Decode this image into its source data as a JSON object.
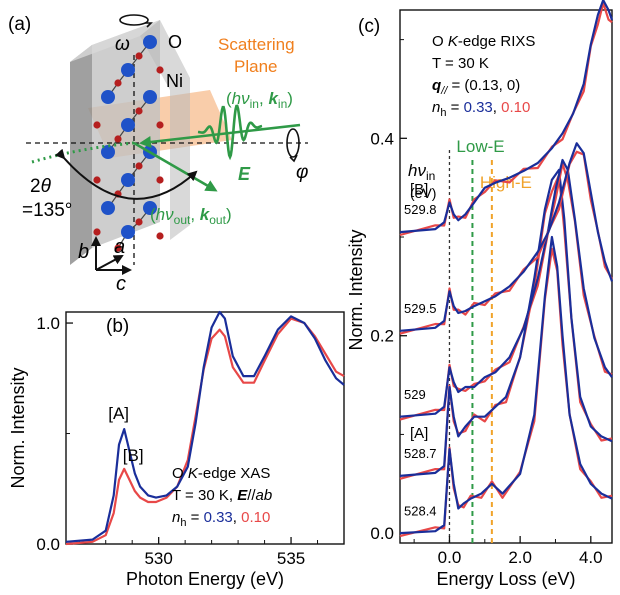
{
  "panel_a": {
    "label": "(a)",
    "omega": "ω",
    "o_label": "O",
    "ni_label": "Ni",
    "plane_line1": "Scattering",
    "plane_line2": "Plane",
    "kin_label": "(hν_in, k_in)",
    "e_label": "E",
    "phi": "φ",
    "two_theta": "2θ",
    "angle": "=135°",
    "kout_label": "(hν_out, k_out)",
    "axis_a": "a",
    "axis_b": "b",
    "axis_c": "c",
    "colors": {
      "plane": "#f4a465",
      "beam": "#2f9a47",
      "ni": "#1f52c8",
      "o": "#b51f1f",
      "text_orange": "#f07f1d"
    }
  },
  "chart_data": [
    {
      "type": "line",
      "panel": "(b)",
      "xlabel": "Photon Energy (eV)",
      "ylabel": "Norm. Intensity",
      "xlim": [
        526.5,
        537
      ],
      "ylim": [
        0,
        1.05
      ],
      "x_ticks": [
        "530",
        "535"
      ],
      "y_ticks": [
        "0.0",
        "1.0"
      ],
      "x_tick_values": [
        530,
        535
      ],
      "y_tick_values": [
        0,
        1
      ],
      "annotations": [
        "[A]",
        "[B]"
      ],
      "legend": [
        "O K-edge XAS",
        "T = 30 K, E//ab",
        "n_h = 0.33, 0.10"
      ],
      "legend_placement": "bottom-right",
      "series": [
        {
          "name": "0.33",
          "color": "#1a2e9a",
          "x": [
            526.5,
            527.5,
            528.0,
            528.3,
            528.5,
            528.7,
            528.9,
            529.1,
            529.3,
            529.6,
            529.9,
            530.3,
            530.7,
            531.1,
            531.4,
            531.7,
            532.0,
            532.3,
            532.5,
            532.8,
            533.2,
            533.6,
            534.0,
            534.5,
            535.0,
            535.5,
            535.9,
            536.3,
            536.7,
            537.0
          ],
          "y": [
            0.01,
            0.02,
            0.06,
            0.22,
            0.45,
            0.52,
            0.42,
            0.32,
            0.26,
            0.22,
            0.21,
            0.22,
            0.26,
            0.35,
            0.55,
            0.8,
            0.98,
            1.05,
            1.02,
            0.85,
            0.76,
            0.76,
            0.85,
            0.97,
            1.03,
            1.0,
            0.93,
            0.83,
            0.75,
            0.72
          ]
        },
        {
          "name": "0.10",
          "color": "#e84848",
          "x": [
            526.5,
            527.5,
            528.0,
            528.3,
            528.5,
            528.7,
            528.9,
            529.1,
            529.3,
            529.6,
            529.9,
            530.3,
            530.7,
            531.1,
            531.4,
            531.7,
            532.0,
            532.3,
            532.5,
            532.8,
            533.2,
            533.6,
            534.0,
            534.5,
            535.0,
            535.5,
            535.9,
            536.3,
            536.7,
            537.0
          ],
          "y": [
            0.0,
            0.01,
            0.04,
            0.14,
            0.29,
            0.34,
            0.29,
            0.24,
            0.21,
            0.19,
            0.19,
            0.21,
            0.26,
            0.38,
            0.58,
            0.79,
            0.93,
            0.97,
            0.94,
            0.8,
            0.73,
            0.73,
            0.83,
            0.95,
            1.02,
            1.0,
            0.94,
            0.86,
            0.78,
            0.76
          ]
        }
      ]
    },
    {
      "type": "line",
      "panel": "(c)",
      "xlabel": "Energy Loss (eV)",
      "ylabel": "Norm. Intensity",
      "xlim": [
        -1.4,
        4.6
      ],
      "ylim": [
        -0.01,
        0.53
      ],
      "x_ticks": [
        "0.0",
        "2.0",
        "4.0"
      ],
      "y_ticks": [
        "0.0",
        "0.2",
        "0.4"
      ],
      "x_tick_values": [
        0,
        2,
        4
      ],
      "y_tick_values": [
        0,
        0.2,
        0.4
      ],
      "legend": [
        "O K-edge RIXS",
        "T = 30 K",
        "q// = (0.13, 0)",
        "n_h = 0.33, 0.10"
      ],
      "legend_placement": "top-left",
      "incident_label": "hν_in",
      "incident_unit": "(eV)",
      "markers": [
        {
          "label": "Low-E",
          "x": 0.65,
          "color": "#2f9a47"
        },
        {
          "label": "High-E",
          "x": 1.2,
          "color": "#f0a32a"
        },
        {
          "label": "",
          "x": 0.0,
          "color": "#333333"
        }
      ],
      "spectra": [
        {
          "energy": "528.4",
          "tag": "",
          "offset": 0.0,
          "x": [
            -1.4,
            -0.4,
            -0.15,
            0.0,
            0.12,
            0.25,
            0.4,
            0.6,
            0.9,
            1.2,
            1.5,
            2.0,
            2.4,
            2.7,
            2.9,
            3.05,
            3.2,
            3.4,
            3.7,
            4.0,
            4.3,
            4.6
          ],
          "y": [
            0.0,
            0.002,
            0.008,
            0.085,
            0.05,
            0.025,
            0.03,
            0.035,
            0.04,
            0.05,
            0.04,
            0.06,
            0.12,
            0.24,
            0.3,
            0.27,
            0.2,
            0.12,
            0.07,
            0.05,
            0.04,
            0.035
          ]
        },
        {
          "energy": "528.7",
          "tag": "[A]",
          "offset": 0.058,
          "x": [
            -1.4,
            -0.4,
            -0.15,
            0.0,
            0.12,
            0.25,
            0.45,
            0.7,
            1.0,
            1.3,
            1.6,
            2.0,
            2.4,
            2.7,
            2.9,
            3.1,
            3.25,
            3.45,
            3.7,
            4.0,
            4.3,
            4.6
          ],
          "y": [
            0.0,
            0.003,
            0.01,
            0.09,
            0.06,
            0.04,
            0.05,
            0.06,
            0.06,
            0.07,
            0.08,
            0.12,
            0.2,
            0.27,
            0.3,
            0.31,
            0.26,
            0.16,
            0.08,
            0.05,
            0.04,
            0.035
          ]
        },
        {
          "energy": "529",
          "tag": "",
          "offset": 0.118,
          "x": [
            -1.4,
            -0.4,
            -0.15,
            0.0,
            0.12,
            0.25,
            0.45,
            0.7,
            1.0,
            1.3,
            1.7,
            2.1,
            2.5,
            2.8,
            3.0,
            3.2,
            3.35,
            3.55,
            3.8,
            4.1,
            4.4,
            4.6
          ],
          "y": [
            0.0,
            0.003,
            0.01,
            0.05,
            0.035,
            0.025,
            0.03,
            0.03,
            0.04,
            0.045,
            0.06,
            0.09,
            0.14,
            0.19,
            0.23,
            0.26,
            0.25,
            0.2,
            0.13,
            0.08,
            0.05,
            0.04
          ]
        },
        {
          "energy": "529.5",
          "tag": "",
          "offset": 0.205,
          "x": [
            -1.4,
            -0.4,
            -0.15,
            0.0,
            0.12,
            0.25,
            0.45,
            0.7,
            1.0,
            1.3,
            1.7,
            2.1,
            2.5,
            2.8,
            3.1,
            3.4,
            3.6,
            3.8,
            4.0,
            4.2,
            4.4,
            4.6
          ],
          "y": [
            0.0,
            0.003,
            0.01,
            0.04,
            0.025,
            0.018,
            0.02,
            0.025,
            0.03,
            0.035,
            0.045,
            0.06,
            0.08,
            0.1,
            0.13,
            0.17,
            0.19,
            0.18,
            0.14,
            0.1,
            0.07,
            0.05
          ]
        },
        {
          "energy": "529.8",
          "tag": "[B]",
          "offset": 0.305,
          "x": [
            -1.4,
            -0.4,
            -0.15,
            0.0,
            0.12,
            0.25,
            0.45,
            0.7,
            1.0,
            1.3,
            1.7,
            2.1,
            2.5,
            2.9,
            3.2,
            3.5,
            3.8,
            4.0,
            4.2,
            4.35,
            4.5,
            4.6
          ],
          "y": [
            0.0,
            0.003,
            0.01,
            0.03,
            0.018,
            0.012,
            0.018,
            0.03,
            0.045,
            0.05,
            0.055,
            0.062,
            0.07,
            0.085,
            0.1,
            0.12,
            0.15,
            0.19,
            0.22,
            0.235,
            0.225,
            0.215
          ]
        }
      ],
      "series": [
        {
          "name": "0.33",
          "color": "#1a2e9a"
        },
        {
          "name": "0.10",
          "color": "#e84848"
        }
      ]
    }
  ]
}
